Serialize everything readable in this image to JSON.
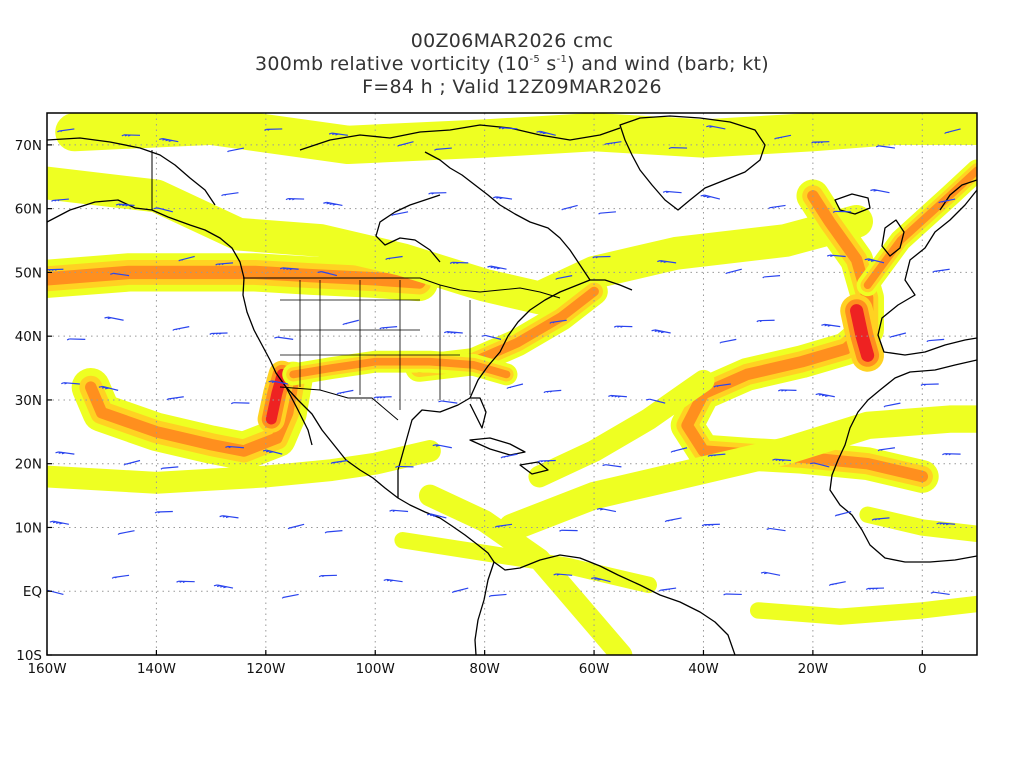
{
  "title": {
    "line1": "00Z06MAR2026 cmc",
    "line2_prefix": "300mb relative vorticity (10",
    "line2_exp1": "-5",
    "line2_mid": " s",
    "line2_exp2": "-1",
    "line2_suffix": ") and wind (barb; kt)",
    "line3": "F=84 h ; Valid 12Z09MAR2026"
  },
  "axes": {
    "lon_range": [
      -160,
      10
    ],
    "lat_range": [
      -10,
      75
    ],
    "lat_labels": [
      {
        "value": 70,
        "text": "70N"
      },
      {
        "value": 60,
        "text": "60N"
      },
      {
        "value": 50,
        "text": "50N"
      },
      {
        "value": 40,
        "text": "40N"
      },
      {
        "value": 30,
        "text": "30N"
      },
      {
        "value": 20,
        "text": "20N"
      },
      {
        "value": 10,
        "text": "10N"
      },
      {
        "value": 0,
        "text": "EQ"
      },
      {
        "value": -10,
        "text": "10S"
      }
    ],
    "lon_labels": [
      {
        "value": -160,
        "text": "160W"
      },
      {
        "value": -140,
        "text": "140W"
      },
      {
        "value": -120,
        "text": "120W"
      },
      {
        "value": -100,
        "text": "100W"
      },
      {
        "value": -80,
        "text": "80W"
      },
      {
        "value": -60,
        "text": "60W"
      },
      {
        "value": -40,
        "text": "40W"
      },
      {
        "value": -20,
        "text": "20W"
      },
      {
        "value": 0,
        "text": "0"
      }
    ],
    "grid": "dotted"
  },
  "colors": {
    "vort_low": "#eeff22",
    "vort_mid": "#ffd222",
    "vort_high": "#ff8f1e",
    "vort_peak": "#ee2222",
    "barb": "#2a44ee",
    "coast": "#000000",
    "grid": "#999999"
  },
  "vorticity_bands": [
    {
      "name": "pacific-jet-50n",
      "pts": [
        [
          -160,
          49
        ],
        [
          -145,
          50
        ],
        [
          -132,
          50
        ],
        [
          -122,
          50
        ],
        [
          -112,
          49.5
        ],
        [
          -100,
          49
        ],
        [
          -92,
          48.5
        ]
      ],
      "w": 7,
      "level": 3
    },
    {
      "name": "northern-streak",
      "pts": [
        [
          -160,
          64
        ],
        [
          -140,
          62
        ],
        [
          -125,
          56
        ],
        [
          -110,
          55
        ],
        [
          -95,
          52
        ],
        [
          -80,
          48
        ],
        [
          -70,
          46
        ],
        [
          -60,
          50
        ],
        [
          -45,
          53
        ],
        [
          -25,
          55
        ],
        [
          -12,
          58
        ]
      ],
      "w": 6,
      "level": 1
    },
    {
      "name": "arctic-streak",
      "pts": [
        [
          -155,
          72
        ],
        [
          -130,
          73
        ],
        [
          -105,
          70
        ],
        [
          -80,
          71
        ],
        [
          -60,
          72
        ],
        [
          -40,
          71
        ],
        [
          -20,
          72
        ],
        [
          -5,
          73
        ],
        [
          10,
          73
        ]
      ],
      "w": 7,
      "level": 1
    },
    {
      "name": "east-us-jet",
      "pts": [
        [
          -92,
          35
        ],
        [
          -82,
          36
        ],
        [
          -74,
          39
        ],
        [
          -66,
          43
        ],
        [
          -60,
          47
        ]
      ],
      "w": 5,
      "level": 3
    },
    {
      "name": "eastpac-cutoff",
      "pts": [
        [
          -152,
          32
        ],
        [
          -150,
          28
        ],
        [
          -140,
          25
        ],
        [
          -130,
          23
        ],
        [
          -124,
          22
        ],
        [
          -118,
          24
        ],
        [
          -116,
          28
        ],
        [
          -115,
          33
        ]
      ],
      "w": 7,
      "level": 2
    },
    {
      "name": "baja-low",
      "pts": [
        [
          -119,
          27
        ],
        [
          -118,
          31
        ],
        [
          -117,
          34
        ]
      ],
      "w": 5,
      "level": 4
    },
    {
      "name": "southern-stream-us",
      "pts": [
        [
          -115,
          34
        ],
        [
          -108,
          35
        ],
        [
          -100,
          36
        ],
        [
          -90,
          36
        ],
        [
          -82,
          35.5
        ],
        [
          -76,
          34
        ]
      ],
      "w": 4,
      "level": 3
    },
    {
      "name": "atlantic-s-curve",
      "pts": [
        [
          0,
          18
        ],
        [
          -10,
          20
        ],
        [
          -22,
          21
        ],
        [
          -32,
          21.5
        ],
        [
          -40,
          22
        ],
        [
          -43,
          26
        ],
        [
          -40,
          31
        ],
        [
          -32,
          34
        ],
        [
          -22,
          36
        ],
        [
          -14,
          38
        ],
        [
          -10,
          41
        ],
        [
          -10,
          46
        ],
        [
          -12,
          52
        ],
        [
          -17,
          58
        ],
        [
          -20,
          62
        ]
      ],
      "w": 6,
      "level": 3
    },
    {
      "name": "iberia-low",
      "pts": [
        [
          -12,
          44
        ],
        [
          -11,
          40
        ],
        [
          -10,
          37
        ]
      ],
      "w": 6,
      "level": 4
    },
    {
      "name": "scandinavia-arc",
      "pts": [
        [
          -10,
          48
        ],
        [
          -4,
          55
        ],
        [
          5,
          62
        ],
        [
          10,
          66
        ]
      ],
      "w": 4,
      "level": 3
    },
    {
      "name": "central-atl-streak",
      "pts": [
        [
          -70,
          18
        ],
        [
          -60,
          22
        ],
        [
          -50,
          27
        ],
        [
          -45,
          30
        ],
        [
          -40,
          33
        ]
      ],
      "w": 4,
      "level": 1
    },
    {
      "name": "subtropical-streak",
      "pts": [
        [
          -75,
          10
        ],
        [
          -60,
          15
        ],
        [
          -45,
          18
        ],
        [
          -25,
          22
        ],
        [
          -10,
          26
        ],
        [
          5,
          27
        ],
        [
          10,
          27
        ]
      ],
      "w": 5,
      "level": 1
    },
    {
      "name": "mexico-streak",
      "pts": [
        [
          -160,
          18
        ],
        [
          -140,
          17
        ],
        [
          -120,
          18
        ],
        [
          -108,
          19
        ],
        [
          -100,
          20
        ],
        [
          -90,
          22
        ]
      ],
      "w": 4,
      "level": 1
    },
    {
      "name": "caribbean-streak",
      "pts": [
        [
          -90,
          15
        ],
        [
          -80,
          11
        ],
        [
          -70,
          5
        ],
        [
          -60,
          -5
        ],
        [
          -55,
          -10
        ]
      ],
      "w": 4,
      "level": 1
    },
    {
      "name": "equator-streak",
      "pts": [
        [
          -95,
          8
        ],
        [
          -80,
          6
        ],
        [
          -65,
          4
        ],
        [
          -50,
          1
        ]
      ],
      "w": 3,
      "level": 1
    },
    {
      "name": "west-africa-streak",
      "pts": [
        [
          -10,
          12
        ],
        [
          0,
          10
        ],
        [
          10,
          9
        ]
      ],
      "w": 3,
      "level": 1
    },
    {
      "name": "s-atlantic-streak",
      "pts": [
        [
          -30,
          -3
        ],
        [
          -15,
          -4
        ],
        [
          0,
          -3
        ],
        [
          10,
          -2
        ]
      ],
      "w": 3,
      "level": 1
    }
  ],
  "barb_grid": {
    "lon_start": -155,
    "lon_end": 8,
    "lon_step": 10,
    "lat_start": 71,
    "lat_end": -6,
    "lat_step": -10
  }
}
